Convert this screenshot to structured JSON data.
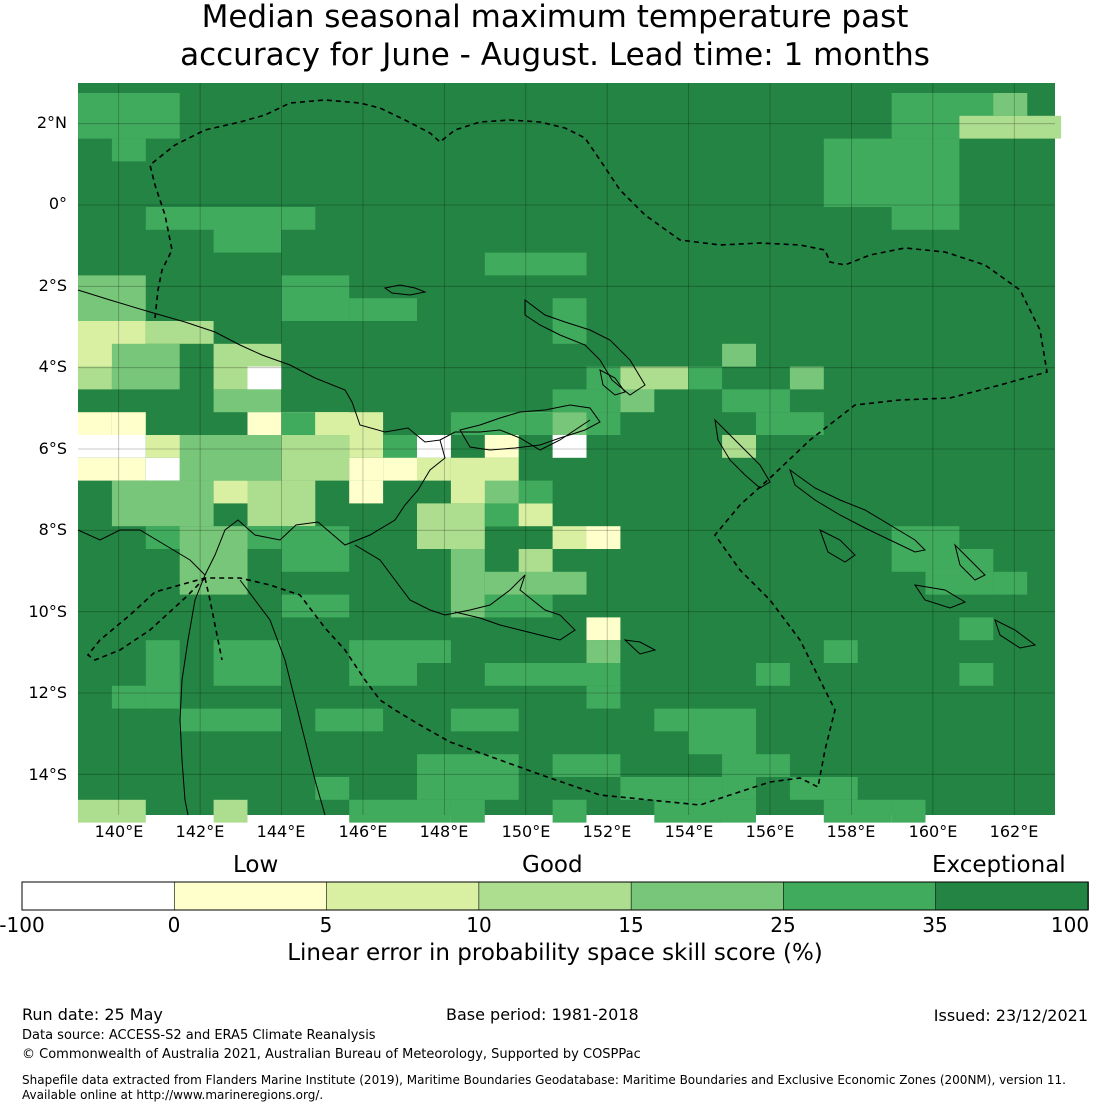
{
  "title_line1": "Median seasonal maximum temperature past",
  "title_line2": "accuracy for June - August. Lead time: 1 months",
  "map": {
    "lat_labels": [
      "2°N",
      "0°",
      "2°S",
      "4°S",
      "6°S",
      "8°S",
      "10°S",
      "12°S",
      "14°S"
    ],
    "lon_labels": [
      "140°E",
      "142°E",
      "144°E",
      "146°E",
      "148°E",
      "150°E",
      "152°E",
      "154°E",
      "156°E",
      "158°E",
      "160°E",
      "162°E"
    ],
    "lon_range": [
      139.0,
      163.0
    ],
    "lat_range": [
      -15.0,
      3.0
    ],
    "grid": true
  },
  "colorbar": {
    "categories": [
      "Low",
      "Good",
      "Exceptional"
    ],
    "ticks": [
      "-100",
      "0",
      "5",
      "10",
      "15",
      "25",
      "35",
      "100"
    ],
    "colors": [
      "#ffffff",
      "#ffffcc",
      "#d9f0a3",
      "#addd8e",
      "#78c679",
      "#41ab5d",
      "#238443"
    ],
    "label": "Linear error in probability space skill score (%)"
  },
  "footer": {
    "run_date": "Run date: 25 May",
    "base_period": "Base period: 1981-2018",
    "issued": "Issued: 23/12/2021",
    "data_source": "Data source: ACCESS-S2 and ERA5 Climate Reanalysis",
    "copyright": "© Commonwealth of Australia 2021, Australian Bureau of Meteorology, Supported by COSPPac",
    "shapefile_line1": "Shapefile data extracted from Flanders Marine Institute (2019), Maritime Boundaries Geodatabase: Maritime Boundaries and Exclusive Economic Zones (200NM), version 11.",
    "shapefile_line2": "Available online at http://www.marineregions.org/."
  }
}
